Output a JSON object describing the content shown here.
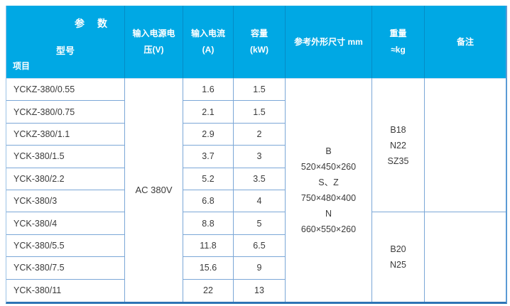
{
  "colors": {
    "header_bg": "#00a8e4",
    "grid_line": "#7ba7d7",
    "outer_bottom": "#2e74b5",
    "text": "#3a3a3a"
  },
  "header": {
    "corner": {
      "param_label": "参　数",
      "model_label": "型号",
      "item_label": "项目"
    },
    "voltage": {
      "line1": "输入电源电",
      "line2": "压(V)"
    },
    "current": {
      "line1": "输入电流",
      "line2": "(A)"
    },
    "capacity": {
      "line1": "容量",
      "line2": "(kW)"
    },
    "dimensions": {
      "line1": "参考外形尺寸 mm"
    },
    "weight": {
      "line1": "重量",
      "line2": "≈kg"
    },
    "remark": {
      "line1": "备注"
    }
  },
  "voltage_value": "AC 380V",
  "dimensions": {
    "lines": [
      "B",
      "520×450×260",
      "S、Z",
      "750×480×400",
      "N",
      "660×550×260"
    ]
  },
  "weights": [
    {
      "lines": [
        "B18",
        "N22",
        "SZ35"
      ]
    },
    {
      "lines": [
        "B20",
        "N25"
      ]
    }
  ],
  "remarks": [
    "",
    ""
  ],
  "rows": [
    {
      "model": "YCKZ-380/0.55",
      "current": "1.6",
      "capacity": "1.5"
    },
    {
      "model": "YCKZ-380/0.75",
      "current": "2.1",
      "capacity": "1.5"
    },
    {
      "model": "YCKZ-380/1.1",
      "current": "2.9",
      "capacity": "2"
    },
    {
      "model": "YCK-380/1.5",
      "current": "3.7",
      "capacity": "3"
    },
    {
      "model": "YCK-380/2.2",
      "current": "5.2",
      "capacity": "3.5"
    },
    {
      "model": "YCK-380/3",
      "current": "6.8",
      "capacity": "4"
    },
    {
      "model": "YCK-380/4",
      "current": "8.8",
      "capacity": "5"
    },
    {
      "model": "YCK-380/5.5",
      "current": "11.8",
      "capacity": "6.5"
    },
    {
      "model": "YCK-380/7.5",
      "current": "15.6",
      "capacity": "9"
    },
    {
      "model": "YCK-380/11",
      "current": "22",
      "capacity": "13"
    }
  ]
}
